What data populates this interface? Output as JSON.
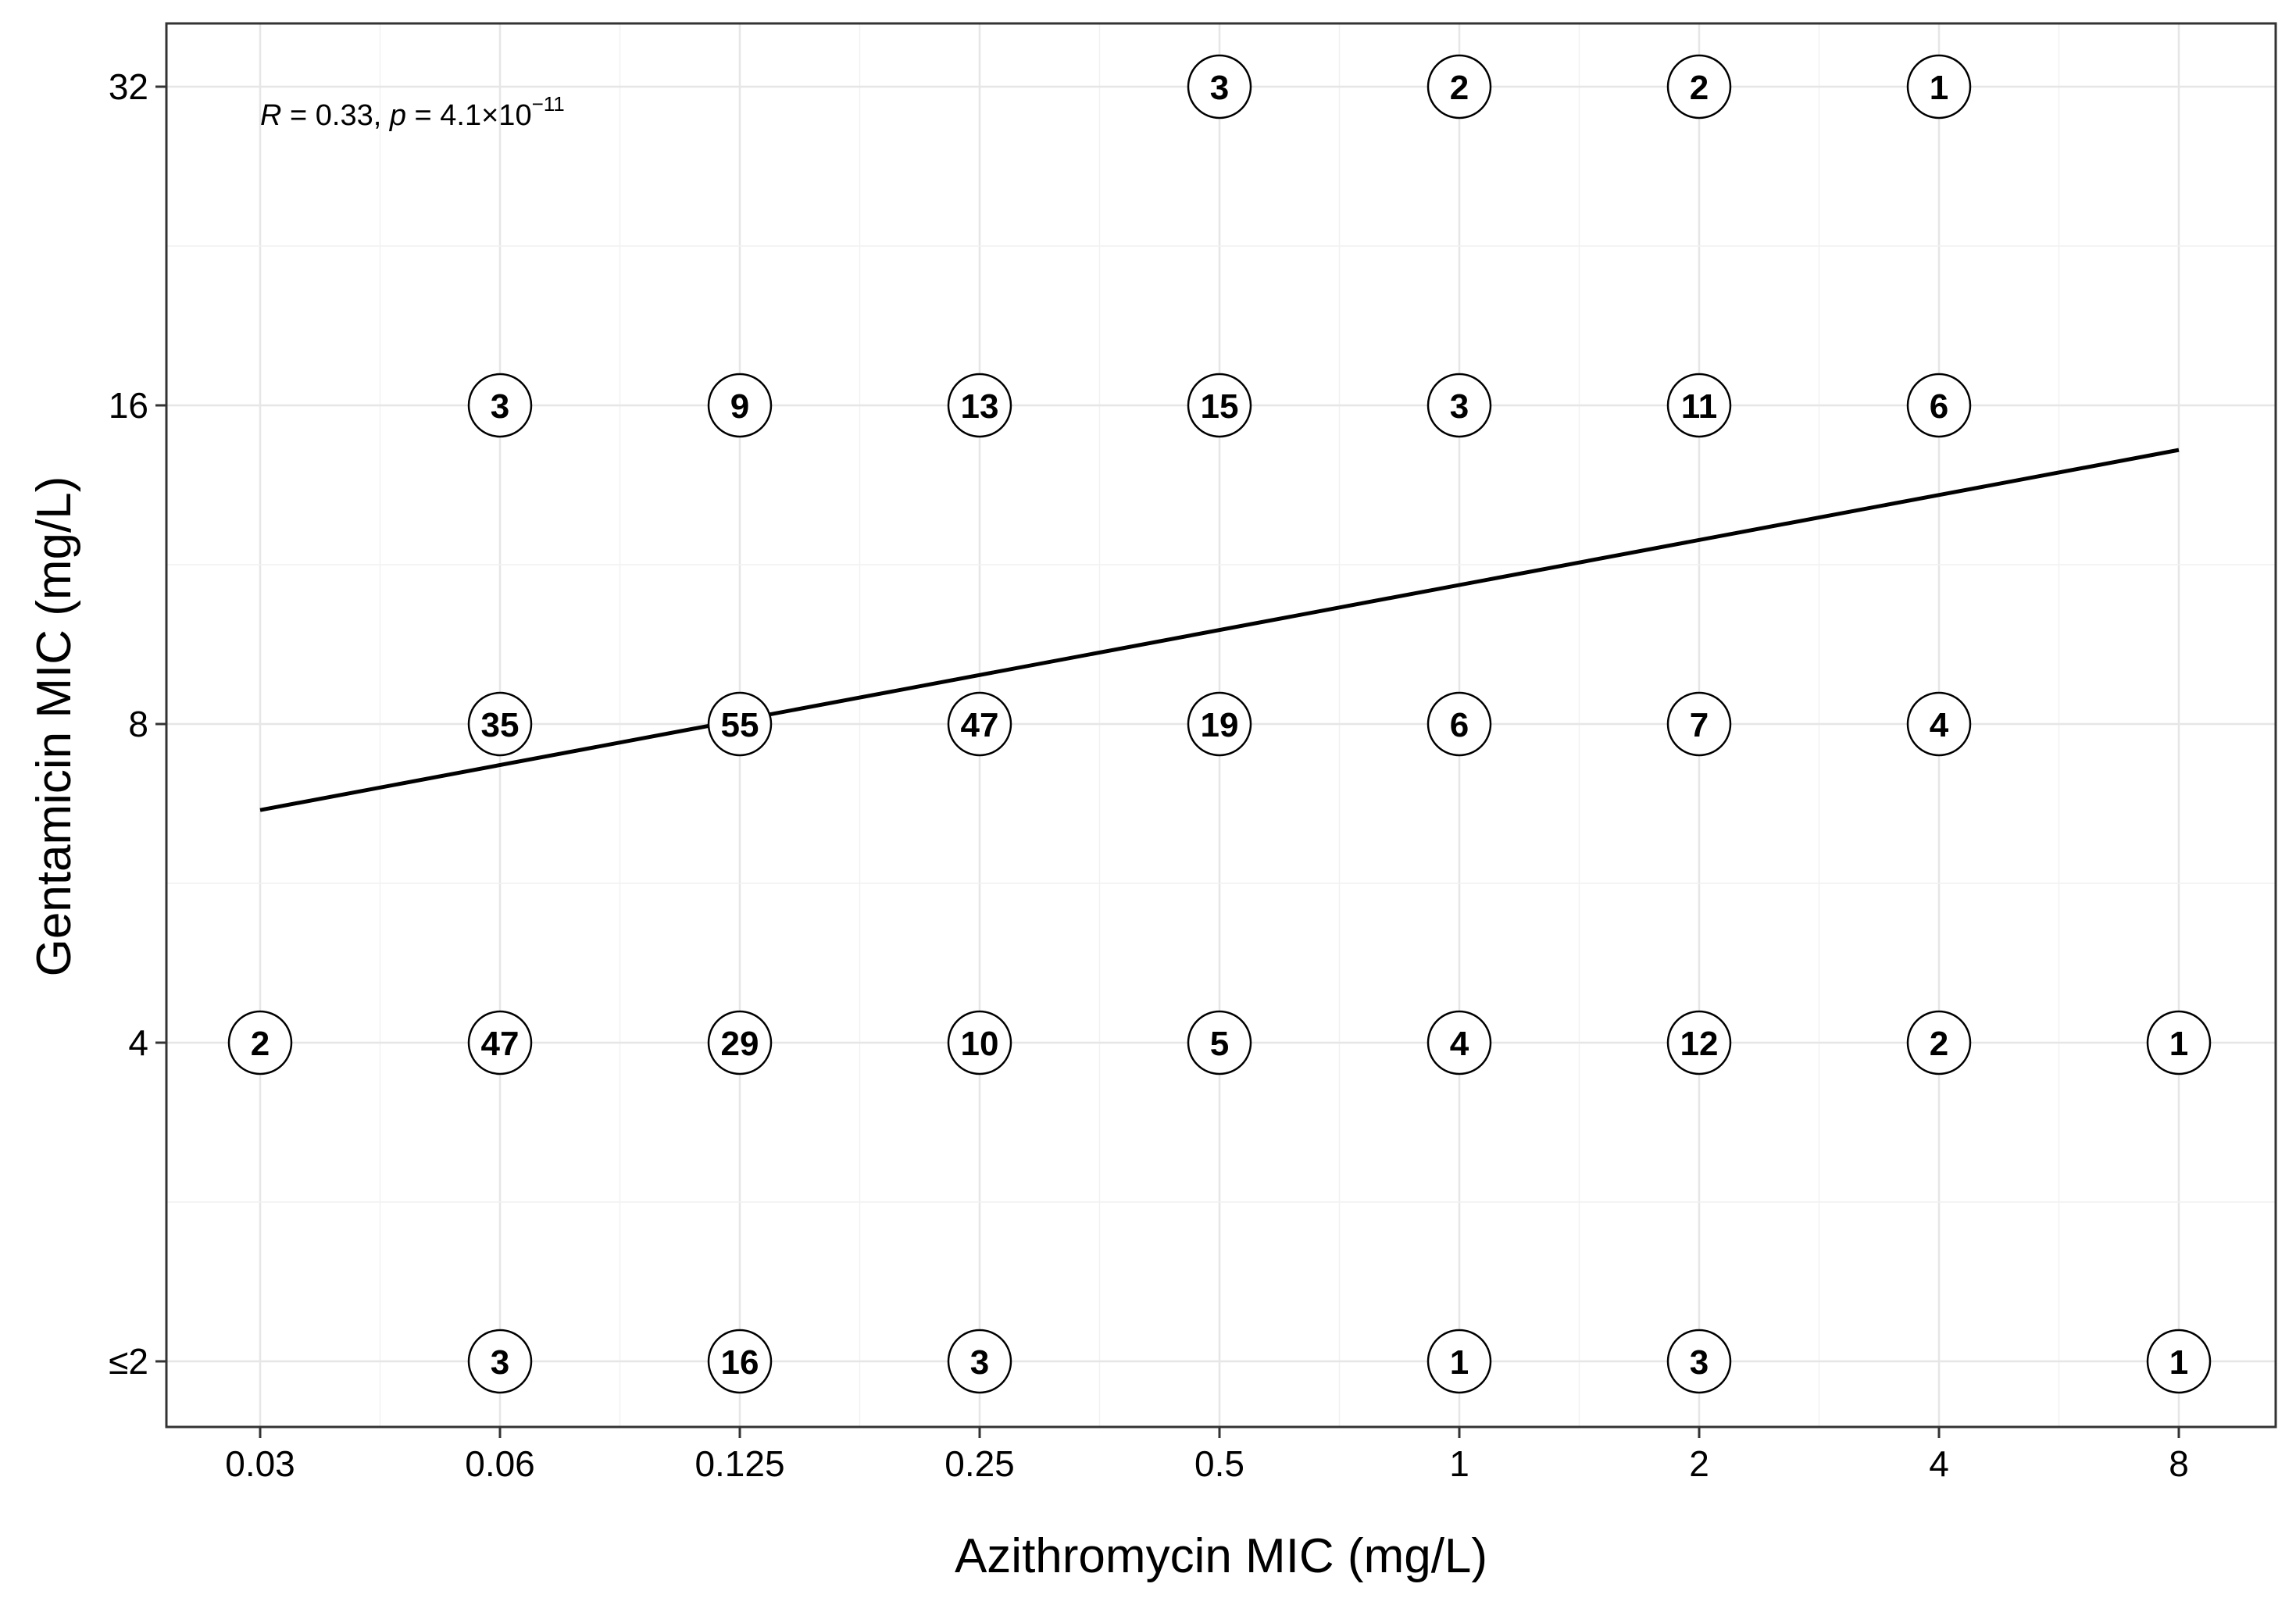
{
  "chart_data": {
    "type": "scatter",
    "subtype": "count-bubble",
    "xlabel": "Azithromycin MIC (mg/L)",
    "ylabel": "Gentamicin MIC (mg/L)",
    "x_categories": [
      "0.03",
      "0.06",
      "0.125",
      "0.25",
      "0.5",
      "1",
      "2",
      "4",
      "8"
    ],
    "y_categories": [
      "≤2",
      "4",
      "8",
      "16",
      "32"
    ],
    "grid": true,
    "annotation": {
      "r_symbol": "R",
      "r_text": " = 0.33, ",
      "p_symbol": "p",
      "p_text": " = 4.1×10",
      "p_exponent": "−11"
    },
    "points": [
      {
        "x": "0.5",
        "y": "32",
        "count": 3
      },
      {
        "x": "1",
        "y": "32",
        "count": 2
      },
      {
        "x": "2",
        "y": "32",
        "count": 2
      },
      {
        "x": "4",
        "y": "32",
        "count": 1
      },
      {
        "x": "0.06",
        "y": "16",
        "count": 3
      },
      {
        "x": "0.125",
        "y": "16",
        "count": 9
      },
      {
        "x": "0.25",
        "y": "16",
        "count": 13
      },
      {
        "x": "0.5",
        "y": "16",
        "count": 15
      },
      {
        "x": "1",
        "y": "16",
        "count": 3
      },
      {
        "x": "2",
        "y": "16",
        "count": 11
      },
      {
        "x": "4",
        "y": "16",
        "count": 6
      },
      {
        "x": "0.06",
        "y": "8",
        "count": 35
      },
      {
        "x": "0.125",
        "y": "8",
        "count": 55
      },
      {
        "x": "0.25",
        "y": "8",
        "count": 47
      },
      {
        "x": "0.5",
        "y": "8",
        "count": 19
      },
      {
        "x": "1",
        "y": "8",
        "count": 6
      },
      {
        "x": "2",
        "y": "8",
        "count": 7
      },
      {
        "x": "4",
        "y": "8",
        "count": 4
      },
      {
        "x": "0.03",
        "y": "4",
        "count": 2
      },
      {
        "x": "0.06",
        "y": "4",
        "count": 47
      },
      {
        "x": "0.125",
        "y": "4",
        "count": 29
      },
      {
        "x": "0.25",
        "y": "4",
        "count": 10
      },
      {
        "x": "0.5",
        "y": "4",
        "count": 5
      },
      {
        "x": "1",
        "y": "4",
        "count": 4
      },
      {
        "x": "2",
        "y": "4",
        "count": 12
      },
      {
        "x": "4",
        "y": "4",
        "count": 2
      },
      {
        "x": "8",
        "y": "4",
        "count": 1
      },
      {
        "x": "0.06",
        "y": "≤2",
        "count": 3
      },
      {
        "x": "0.125",
        "y": "≤2",
        "count": 16
      },
      {
        "x": "0.25",
        "y": "≤2",
        "count": 3
      },
      {
        "x": "1",
        "y": "≤2",
        "count": 1
      },
      {
        "x": "2",
        "y": "≤2",
        "count": 3
      },
      {
        "x": "8",
        "y": "≤2",
        "count": 1
      }
    ],
    "fit_line": {
      "type": "linear",
      "x_range": [
        "0.03",
        "8"
      ],
      "y_start_index": 1.73,
      "y_end_index": 2.86
    }
  }
}
